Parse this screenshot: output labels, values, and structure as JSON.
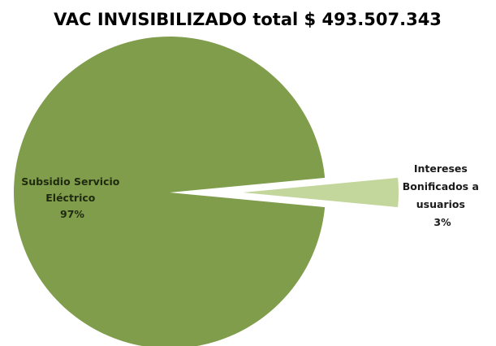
{
  "chart_data": {
    "type": "pie",
    "title": "VAC INVISIBILIZADO total $ 493.507.343",
    "legend": "none",
    "slices": [
      {
        "label_lines": [
          "Subsidio Servicio",
          "Eléctrico"
        ],
        "percent_label": "97%",
        "value": 97,
        "color": "#7f9d4a",
        "exploded": false,
        "label_color": "#1f2a10"
      },
      {
        "label_lines": [
          "Intereses",
          "Bonificados a",
          "usuarios"
        ],
        "percent_label": "3%",
        "value": 3,
        "color": "#c3d69b",
        "exploded": true,
        "label_color": "#1a1a1a"
      }
    ]
  }
}
